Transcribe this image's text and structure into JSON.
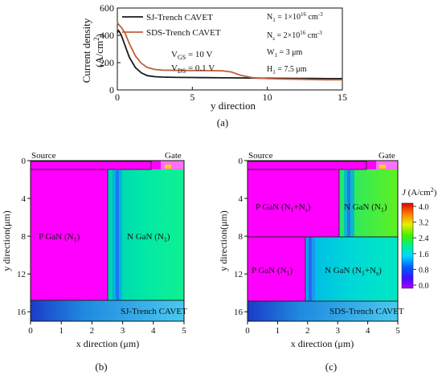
{
  "panels": {
    "a": {
      "label": "(a)",
      "chart_data": {
        "type": "line",
        "xlabel": "y direction",
        "ylabel": "Current density (A/cm²)",
        "ylabel_line1": "Current density",
        "ylabel_line2": "(A/cm",
        "ylabel_sup": "2",
        "ylabel_close": ")",
        "xlim": [
          0,
          15
        ],
        "ylim": [
          0,
          600
        ],
        "xticks": [
          "0",
          "5",
          "10",
          "15"
        ],
        "yticks": [
          "0",
          "200",
          "400",
          "600"
        ],
        "series": [
          {
            "name": "SJ-Trench CAVET",
            "color": "#1a1a1a",
            "x": [
              0,
              0.08,
              0.25,
              0.5,
              0.8,
              1.2,
              1.6,
              2.0,
              2.5,
              3,
              4,
              5,
              6,
              7,
              8,
              9,
              10,
              11,
              12,
              13,
              14,
              15
            ],
            "y": [
              420,
              435,
              405,
              330,
              240,
              165,
              125,
              105,
              97,
              94,
              92,
              91,
              90,
              89,
              88,
              87,
              86,
              85,
              84,
              84,
              83,
              83
            ]
          },
          {
            "name": "SDS-Trench CAVET",
            "color": "#c0603a",
            "x": [
              0,
              0.08,
              0.25,
              0.5,
              0.8,
              1.2,
              1.6,
              2.0,
              2.5,
              3,
              4,
              5,
              6,
              7,
              7.6,
              8.2,
              9,
              10,
              11,
              12,
              13,
              14,
              15
            ],
            "y": [
              495,
              480,
              460,
              420,
              340,
              250,
              195,
              165,
              150,
              145,
              143,
              142,
              141,
              140,
              132,
              108,
              90,
              83,
              80,
              78,
              76,
              75,
              74
            ]
          }
        ],
        "annotations": {
          "vgs": {
            "pre": "V",
            "sub": "GS",
            "post": " = 10 V"
          },
          "vds": {
            "pre": "V",
            "sub": "DS",
            "post": " = 0.1 V"
          },
          "n1": {
            "pre": "N",
            "sub": "1",
            "post": " = 1×10",
            "sup": "16",
            "tail": " cm",
            "sup2": "-3"
          },
          "ns": {
            "pre": "N",
            "sub": "s",
            "post": " = 2×10",
            "sup": "16",
            "tail": " cm",
            "sup2": "-3"
          },
          "w1": {
            "pre": "W",
            "sub": "1",
            "post": " = 3 μm"
          },
          "h1": {
            "pre": "H",
            "sub": "1",
            "post": " = 7.5 μm"
          }
        }
      }
    },
    "b": {
      "label": "(b)",
      "chart_data": {
        "type": "heatmap",
        "xlabel": "x direction (μm)",
        "ylabel": "y direction(μm)",
        "xlim": [
          0,
          5
        ],
        "ylim": [
          0,
          17
        ],
        "xticks": [
          "0",
          "1",
          "2",
          "3",
          "4",
          "5"
        ],
        "yticks": [
          "0",
          "4",
          "8",
          "12",
          "16"
        ],
        "top_labels": {
          "source": "Source",
          "gate": "Gate"
        },
        "regions": [
          {
            "pre": "P GaN (N",
            "sub": "1",
            "post": ")"
          },
          {
            "pre": "N GaN (N",
            "sub": "1",
            "post": ")"
          }
        ],
        "caption": "SJ-Trench CAVET"
      }
    },
    "c": {
      "label": "(c)",
      "chart_data": {
        "type": "heatmap",
        "xlabel": "x direction (μm)",
        "ylabel": "y direction(μm)",
        "xlim": [
          0,
          5
        ],
        "ylim": [
          0,
          17
        ],
        "xticks": [
          "0",
          "1",
          "2",
          "3",
          "4",
          "5"
        ],
        "yticks": [
          "0",
          "4",
          "8",
          "12",
          "16"
        ],
        "top_labels": {
          "source": "Source",
          "gate": "Gate"
        },
        "regions": [
          {
            "pre": "P GaN (N",
            "sub": "1",
            "mid": "+N",
            "sub2": "s",
            "post": ")"
          },
          {
            "pre": "N GaN (N",
            "sub": "1",
            "post": ")"
          },
          {
            "pre": "P GaN (N",
            "sub": "1",
            "post": ")"
          },
          {
            "pre": "N GaN (N",
            "sub": "1",
            "mid": "+N",
            "sub2": "s",
            "post": ")"
          }
        ],
        "caption": "SDS-Trench CAVET",
        "colorbar": {
          "title_pre": "J",
          "title_post": " (A/cm",
          "title_sup": "2",
          "title_close": ")",
          "range": [
            0,
            4.0
          ],
          "ticks": [
            "4.0",
            "3.2",
            "2.4",
            "1.6",
            "0.8",
            "0.0"
          ]
        }
      }
    }
  }
}
